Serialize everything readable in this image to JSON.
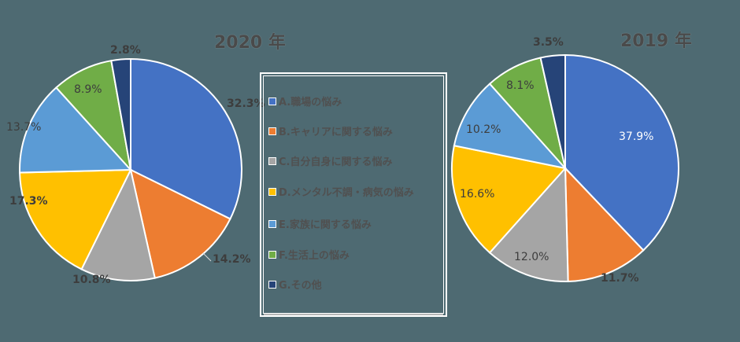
{
  "chart_data": [
    {
      "type": "pie",
      "title": "2020 年",
      "categories": [
        "A.職場の悩み",
        "B.キャリアに関する悩み",
        "C.自分自身に関する悩み",
        "D.メンタル不調・病気の悩み",
        "E.家族に関する悩み",
        "F.生活上の悩み",
        "G.その他"
      ],
      "values": [
        32.3,
        14.2,
        10.8,
        17.3,
        13.7,
        8.9,
        2.8
      ],
      "labels": [
        "32.3%",
        "14.2%",
        "10.8%",
        "17.3%",
        "13.7%",
        "8.9%",
        "2.8%"
      ],
      "legend_position": "right"
    },
    {
      "type": "pie",
      "title": "2019 年",
      "categories": [
        "A.職場の悩み",
        "B.キャリアに関する悩み",
        "C.自分自身に関する悩み",
        "D.メンタル不調・病気の悩み",
        "E.家族に関する悩み",
        "F.生活上の悩み",
        "G.その他"
      ],
      "values": [
        37.9,
        11.7,
        12.0,
        16.6,
        10.2,
        8.1,
        3.5
      ],
      "labels": [
        "37.9%",
        "11.7%",
        "12.0%",
        "16.6%",
        "10.2%",
        "8.1%",
        "3.5%"
      ],
      "legend_position": "left"
    }
  ],
  "colors": [
    "#4472c4",
    "#ed7d31",
    "#a5a5a5",
    "#ffc000",
    "#5b9bd5",
    "#70ad47",
    "#264478"
  ],
  "legend": {
    "items": [
      {
        "label": "A.職場の悩み",
        "color": "#4472c4"
      },
      {
        "label": "B.キャリアに関する悩み",
        "color": "#ed7d31"
      },
      {
        "label": "C.自分自身に関する悩み",
        "color": "#a5a5a5"
      },
      {
        "label": "D.メンタル不調・病気の悩み",
        "color": "#ffc000"
      },
      {
        "label": "E.家族に関する悩み",
        "color": "#5b9bd5"
      },
      {
        "label": "F.生活上の悩み",
        "color": "#70ad47"
      },
      {
        "label": "G.その他",
        "color": "#264478"
      }
    ]
  }
}
